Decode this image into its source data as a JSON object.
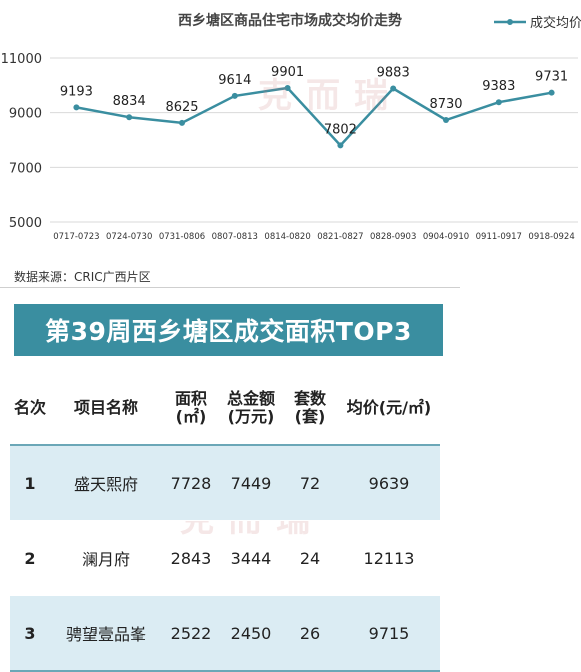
{
  "chart_data": {
    "type": "line",
    "title": "西乡塘区商品住宅市场成交均价走势",
    "legend": {
      "entries": [
        "成交均价"
      ],
      "position": "top-right"
    },
    "categories": [
      "0717-0723",
      "0724-0730",
      "0731-0806",
      "0807-0813",
      "0814-0820",
      "0821-0827",
      "0828-0903",
      "0904-0910",
      "0911-0917",
      "0918-0924"
    ],
    "series": [
      {
        "name": "成交均价",
        "values": [
          9193,
          8834,
          8625,
          9614,
          9901,
          7802,
          9883,
          8730,
          9383,
          9731
        ]
      }
    ],
    "ylim": [
      5000,
      11000
    ],
    "yticks": [
      5000,
      7000,
      9000,
      11000
    ],
    "grid": true,
    "color": "#3a8ea0"
  },
  "source_note": "数据来源：CRIC广西片区",
  "table": {
    "title": "第39周西乡塘区成交面积TOP3",
    "headers": [
      "名次",
      "项目名称",
      "面积(㎡)",
      "总金额(万元)",
      "套数(套)",
      "均价(元/㎡)"
    ],
    "rows": [
      [
        "1",
        "盛天熙府",
        "7728",
        "7449",
        "72",
        "9639"
      ],
      [
        "2",
        "澜月府",
        "2843",
        "3444",
        "24",
        "12113"
      ],
      [
        "3",
        "骋望壹品峯",
        "2522",
        "2450",
        "26",
        "9715"
      ]
    ]
  },
  "watermark": "克而瑞"
}
